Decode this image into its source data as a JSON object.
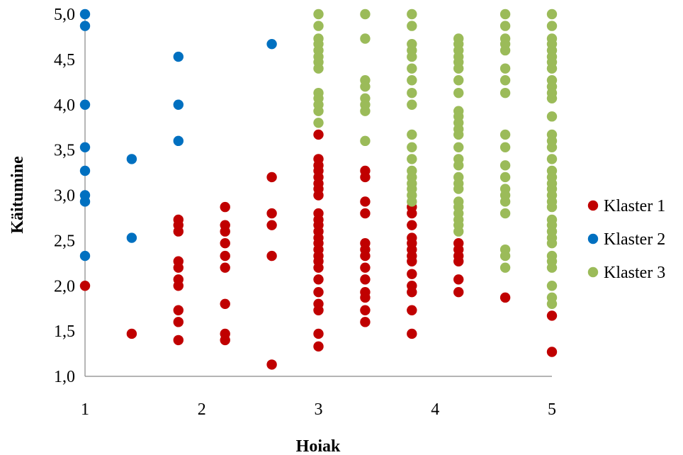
{
  "chart_data": {
    "type": "scatter",
    "xlabel": "Hoiak",
    "ylabel": "Käitumine",
    "xlim": [
      1,
      5
    ],
    "ylim": [
      1.0,
      5.0
    ],
    "xticks": [
      "1",
      "2",
      "3",
      "4",
      "5"
    ],
    "yticks": [
      "1,0",
      "1,5",
      "2,0",
      "2,5",
      "3,0",
      "3,5",
      "4,0",
      "4,5",
      "5,0"
    ],
    "grid": false,
    "legend_position": "right",
    "series": [
      {
        "name": "Klaster 1",
        "color": "#c00000",
        "points": [
          [
            1,
            2.0
          ],
          [
            1.4,
            1.47
          ],
          [
            1.8,
            2.73
          ],
          [
            1.8,
            2.67
          ],
          [
            1.8,
            2.6
          ],
          [
            1.8,
            2.27
          ],
          [
            1.8,
            2.2
          ],
          [
            1.8,
            2.07
          ],
          [
            1.8,
            2.0
          ],
          [
            1.8,
            1.73
          ],
          [
            1.8,
            1.6
          ],
          [
            1.8,
            1.4
          ],
          [
            2.2,
            2.87
          ],
          [
            2.2,
            2.67
          ],
          [
            2.2,
            2.6
          ],
          [
            2.2,
            2.47
          ],
          [
            2.2,
            2.33
          ],
          [
            2.2,
            2.2
          ],
          [
            2.2,
            1.8
          ],
          [
            2.2,
            1.47
          ],
          [
            2.2,
            1.4
          ],
          [
            2.6,
            3.2
          ],
          [
            2.6,
            2.8
          ],
          [
            2.6,
            2.67
          ],
          [
            2.6,
            2.33
          ],
          [
            2.6,
            1.13
          ],
          [
            3,
            3.67
          ],
          [
            3,
            3.4
          ],
          [
            3,
            3.33
          ],
          [
            3,
            3.27
          ],
          [
            3,
            3.2
          ],
          [
            3,
            3.13
          ],
          [
            3,
            3.07
          ],
          [
            3,
            3.0
          ],
          [
            3,
            2.8
          ],
          [
            3,
            2.73
          ],
          [
            3,
            2.67
          ],
          [
            3,
            2.6
          ],
          [
            3,
            2.53
          ],
          [
            3,
            2.47
          ],
          [
            3,
            2.4
          ],
          [
            3,
            2.33
          ],
          [
            3,
            2.27
          ],
          [
            3,
            2.2
          ],
          [
            3,
            2.07
          ],
          [
            3,
            1.93
          ],
          [
            3,
            1.8
          ],
          [
            3,
            1.73
          ],
          [
            3,
            1.47
          ],
          [
            3,
            1.33
          ],
          [
            3.4,
            3.27
          ],
          [
            3.4,
            3.2
          ],
          [
            3.4,
            2.93
          ],
          [
            3.4,
            2.8
          ],
          [
            3.4,
            2.47
          ],
          [
            3.4,
            2.4
          ],
          [
            3.4,
            2.33
          ],
          [
            3.4,
            2.2
          ],
          [
            3.4,
            2.07
          ],
          [
            3.4,
            1.93
          ],
          [
            3.4,
            1.87
          ],
          [
            3.4,
            1.73
          ],
          [
            3.4,
            1.6
          ],
          [
            3.8,
            2.87
          ],
          [
            3.8,
            2.8
          ],
          [
            3.8,
            2.67
          ],
          [
            3.8,
            2.53
          ],
          [
            3.8,
            2.47
          ],
          [
            3.8,
            2.4
          ],
          [
            3.8,
            2.33
          ],
          [
            3.8,
            2.27
          ],
          [
            3.8,
            2.13
          ],
          [
            3.8,
            2.0
          ],
          [
            3.8,
            1.93
          ],
          [
            3.8,
            1.73
          ],
          [
            3.8,
            1.47
          ],
          [
            4.2,
            2.47
          ],
          [
            4.2,
            2.4
          ],
          [
            4.2,
            2.33
          ],
          [
            4.2,
            2.27
          ],
          [
            4.2,
            2.07
          ],
          [
            4.2,
            1.93
          ],
          [
            4.6,
            1.87
          ],
          [
            5,
            1.67
          ],
          [
            5,
            1.27
          ]
        ]
      },
      {
        "name": "Klaster 2",
        "color": "#0070c0",
        "points": [
          [
            1,
            5.0
          ],
          [
            1,
            4.87
          ],
          [
            1,
            4.0
          ],
          [
            1,
            3.53
          ],
          [
            1,
            3.27
          ],
          [
            1,
            3.0
          ],
          [
            1,
            2.93
          ],
          [
            1,
            2.33
          ],
          [
            1.4,
            3.4
          ],
          [
            1.4,
            2.53
          ],
          [
            1.8,
            4.53
          ],
          [
            1.8,
            4.0
          ],
          [
            1.8,
            3.6
          ],
          [
            2.6,
            4.67
          ]
        ]
      },
      {
        "name": "Klaster 3",
        "color": "#9bbb59",
        "points": [
          [
            3,
            5.0
          ],
          [
            3,
            4.87
          ],
          [
            3,
            4.73
          ],
          [
            3,
            4.67
          ],
          [
            3,
            4.6
          ],
          [
            3,
            4.53
          ],
          [
            3,
            4.47
          ],
          [
            3,
            4.4
          ],
          [
            3,
            4.13
          ],
          [
            3,
            4.07
          ],
          [
            3,
            4.0
          ],
          [
            3,
            3.93
          ],
          [
            3,
            3.8
          ],
          [
            3.4,
            5.0
          ],
          [
            3.4,
            4.73
          ],
          [
            3.4,
            4.27
          ],
          [
            3.4,
            4.2
          ],
          [
            3.4,
            4.07
          ],
          [
            3.4,
            4.0
          ],
          [
            3.4,
            3.93
          ],
          [
            3.4,
            3.6
          ],
          [
            3.8,
            5.0
          ],
          [
            3.8,
            4.87
          ],
          [
            3.8,
            4.67
          ],
          [
            3.8,
            4.6
          ],
          [
            3.8,
            4.53
          ],
          [
            3.8,
            4.4
          ],
          [
            3.8,
            4.27
          ],
          [
            3.8,
            4.13
          ],
          [
            3.8,
            4.0
          ],
          [
            3.8,
            3.67
          ],
          [
            3.8,
            3.53
          ],
          [
            3.8,
            3.4
          ],
          [
            3.8,
            3.27
          ],
          [
            3.8,
            3.2
          ],
          [
            3.8,
            3.13
          ],
          [
            3.8,
            3.07
          ],
          [
            3.8,
            3.0
          ],
          [
            3.8,
            2.93
          ],
          [
            4.2,
            4.73
          ],
          [
            4.2,
            4.67
          ],
          [
            4.2,
            4.6
          ],
          [
            4.2,
            4.53
          ],
          [
            4.2,
            4.47
          ],
          [
            4.2,
            4.4
          ],
          [
            4.2,
            4.27
          ],
          [
            4.2,
            4.13
          ],
          [
            4.2,
            3.93
          ],
          [
            4.2,
            3.87
          ],
          [
            4.2,
            3.8
          ],
          [
            4.2,
            3.73
          ],
          [
            4.2,
            3.67
          ],
          [
            4.2,
            3.53
          ],
          [
            4.2,
            3.4
          ],
          [
            4.2,
            3.33
          ],
          [
            4.2,
            3.2
          ],
          [
            4.2,
            3.13
          ],
          [
            4.2,
            3.07
          ],
          [
            4.2,
            2.93
          ],
          [
            4.2,
            2.87
          ],
          [
            4.2,
            2.8
          ],
          [
            4.2,
            2.73
          ],
          [
            4.2,
            2.67
          ],
          [
            4.2,
            2.6
          ],
          [
            4.6,
            5.0
          ],
          [
            4.6,
            4.87
          ],
          [
            4.6,
            4.73
          ],
          [
            4.6,
            4.67
          ],
          [
            4.6,
            4.6
          ],
          [
            4.6,
            4.4
          ],
          [
            4.6,
            4.27
          ],
          [
            4.6,
            4.13
          ],
          [
            4.6,
            3.67
          ],
          [
            4.6,
            3.53
          ],
          [
            4.6,
            3.33
          ],
          [
            4.6,
            3.2
          ],
          [
            4.6,
            3.07
          ],
          [
            4.6,
            3.0
          ],
          [
            4.6,
            2.93
          ],
          [
            4.6,
            2.8
          ],
          [
            4.6,
            2.4
          ],
          [
            4.6,
            2.33
          ],
          [
            4.6,
            2.2
          ],
          [
            5,
            5.0
          ],
          [
            5,
            4.87
          ],
          [
            5,
            4.73
          ],
          [
            5,
            4.67
          ],
          [
            5,
            4.6
          ],
          [
            5,
            4.53
          ],
          [
            5,
            4.47
          ],
          [
            5,
            4.4
          ],
          [
            5,
            4.27
          ],
          [
            5,
            4.2
          ],
          [
            5,
            4.13
          ],
          [
            5,
            4.07
          ],
          [
            5,
            3.87
          ],
          [
            5,
            3.67
          ],
          [
            5,
            3.6
          ],
          [
            5,
            3.53
          ],
          [
            5,
            3.4
          ],
          [
            5,
            3.27
          ],
          [
            5,
            3.2
          ],
          [
            5,
            3.13
          ],
          [
            5,
            3.07
          ],
          [
            5,
            3.0
          ],
          [
            5,
            2.93
          ],
          [
            5,
            2.87
          ],
          [
            5,
            2.73
          ],
          [
            5,
            2.67
          ],
          [
            5,
            2.6
          ],
          [
            5,
            2.53
          ],
          [
            5,
            2.47
          ],
          [
            5,
            2.33
          ],
          [
            5,
            2.27
          ],
          [
            5,
            2.2
          ],
          [
            5,
            2.0
          ],
          [
            5,
            1.87
          ],
          [
            5,
            1.8
          ]
        ]
      }
    ]
  }
}
